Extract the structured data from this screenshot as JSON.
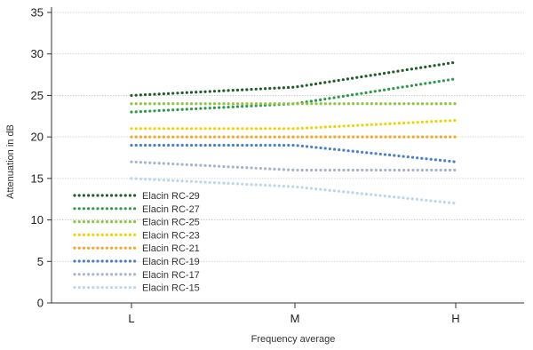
{
  "chart_data": {
    "type": "line",
    "title": "",
    "xlabel": "Frequency average",
    "ylabel": "Attenuation in dB",
    "categories": [
      "L",
      "M",
      "H"
    ],
    "ylim": [
      0,
      35
    ],
    "yticks": [
      0,
      5,
      10,
      15,
      20,
      25,
      30,
      35
    ],
    "grid": true,
    "legend_position": "bottom-left",
    "line_style": "dotted",
    "series": [
      {
        "name": "Elacin RC-29",
        "color": "#1e5c2a",
        "values": [
          25,
          26,
          29
        ]
      },
      {
        "name": "Elacin RC-27",
        "color": "#2a9a48",
        "values": [
          23,
          24,
          27
        ]
      },
      {
        "name": "Elacin RC-25",
        "color": "#8cc63f",
        "values": [
          24,
          24,
          24
        ]
      },
      {
        "name": "Elacin RC-23",
        "color": "#f0d400",
        "values": [
          21,
          21,
          22
        ]
      },
      {
        "name": "Elacin RC-21",
        "color": "#f5a623",
        "values": [
          20,
          20,
          20
        ]
      },
      {
        "name": "Elacin RC-19",
        "color": "#4a7fc9",
        "values": [
          19,
          19,
          17
        ]
      },
      {
        "name": "Elacin RC-17",
        "color": "#a5b4cc",
        "values": [
          17,
          16,
          16
        ]
      },
      {
        "name": "Elacin RC-15",
        "color": "#bcd6ee",
        "values": [
          15,
          14,
          12
        ]
      }
    ]
  }
}
